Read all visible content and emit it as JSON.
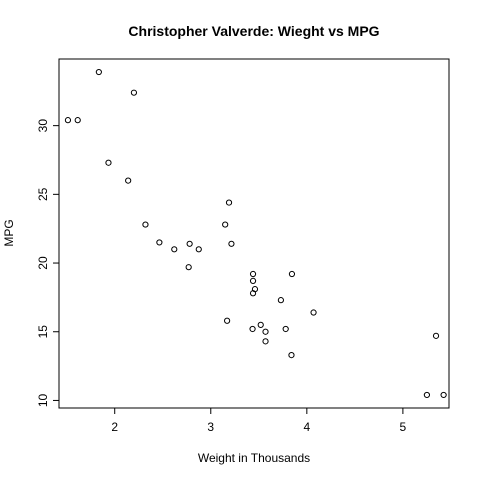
{
  "chart_data": {
    "type": "scatter",
    "title": "Christopher Valverde: Wieght vs MPG",
    "xlabel": "Weight in Thousands",
    "ylabel": "MPG",
    "xlim": [
      1.42,
      5.48
    ],
    "ylim": [
      9.45,
      34.85
    ],
    "xticks": [
      2,
      3,
      4,
      5
    ],
    "yticks": [
      10,
      15,
      20,
      25,
      30
    ],
    "grid": false,
    "marker": "open-circle",
    "x": [
      2.62,
      2.875,
      2.32,
      3.215,
      3.44,
      3.46,
      3.57,
      3.19,
      3.15,
      3.44,
      3.44,
      4.07,
      3.73,
      3.78,
      5.25,
      5.424,
      5.345,
      2.2,
      1.615,
      1.835,
      2.465,
      3.52,
      3.435,
      3.84,
      3.845,
      1.935,
      2.14,
      1.513,
      3.17,
      2.77,
      3.57,
      2.78
    ],
    "y": [
      21.0,
      21.0,
      22.8,
      21.4,
      18.7,
      18.1,
      14.3,
      24.4,
      22.8,
      19.2,
      17.8,
      16.4,
      17.3,
      15.2,
      10.4,
      10.4,
      14.7,
      32.4,
      30.4,
      33.9,
      21.5,
      15.5,
      15.2,
      13.3,
      19.2,
      27.3,
      26.0,
      30.4,
      15.8,
      19.7,
      15.0,
      21.4
    ]
  },
  "colors": {
    "background": "#ffffff",
    "foreground": "#000000"
  }
}
